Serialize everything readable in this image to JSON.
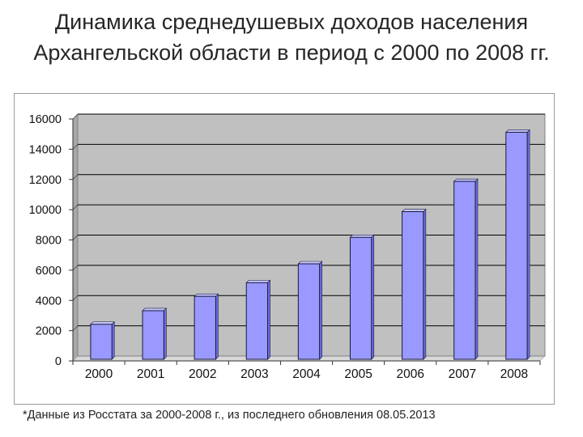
{
  "title": {
    "line1": "Динамика среднедушевых доходов населения",
    "line2": "Архангельской области в период с 2000 по 2008 гг."
  },
  "footnote": "*Данные из Росстата за 2000-2008 г., из последнего обновления 08.05.2013",
  "colors": {
    "bar_fill": "#9999ff",
    "bar_stroke": "#1a1a3a",
    "plot_background": "#c0c0c0",
    "gridline": "#000000"
  },
  "chart_data": {
    "type": "bar",
    "categories": [
      "2000",
      "2001",
      "2002",
      "2003",
      "2004",
      "2005",
      "2006",
      "2007",
      "2008"
    ],
    "values": [
      2100,
      3000,
      3950,
      4850,
      6100,
      7850,
      9550,
      11550,
      14800
    ],
    "ylim": [
      0,
      16000
    ],
    "yticks": [
      "0",
      "2000",
      "4000",
      "6000",
      "8000",
      "10000",
      "12000",
      "14000",
      "16000"
    ],
    "grid": true,
    "legend": "none"
  }
}
